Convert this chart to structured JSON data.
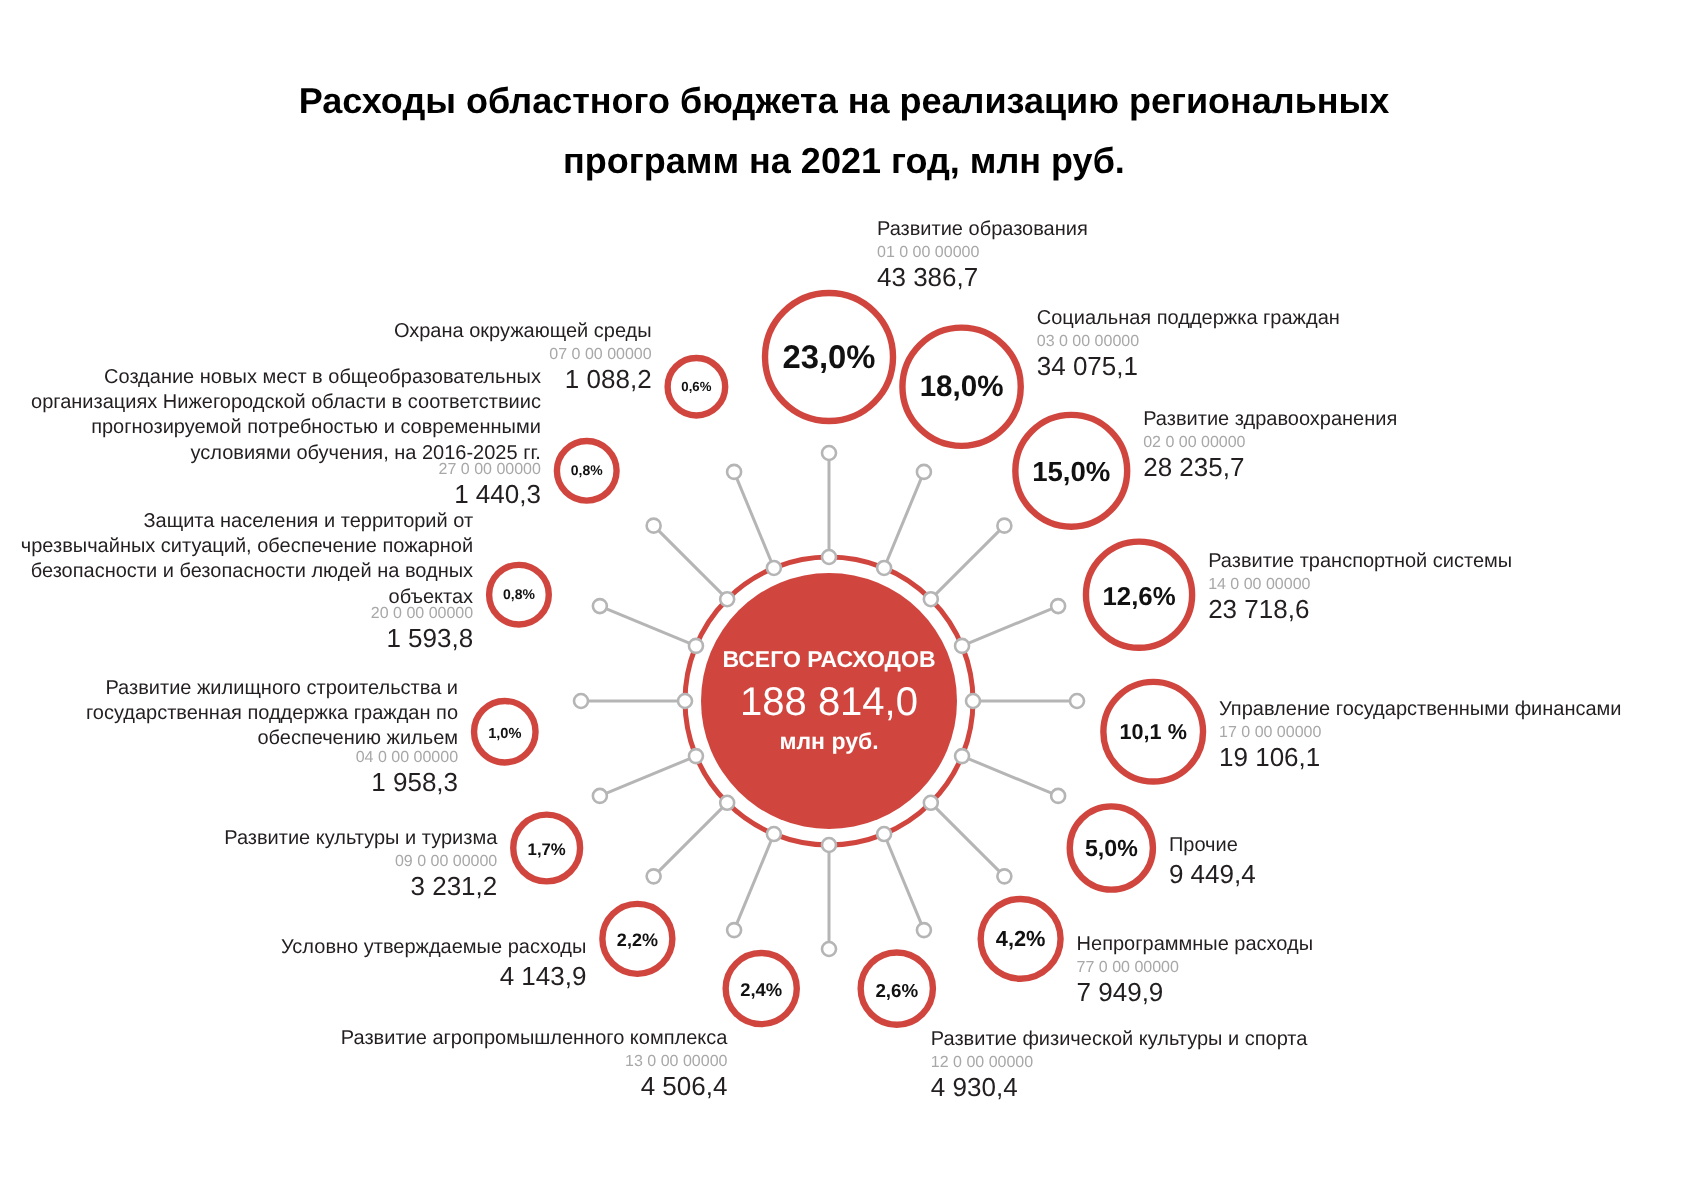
{
  "chart_data": {
    "type": "other",
    "title": "Расходы областного бюджета на реализацию региональных программ на 2021 год, млн руб.",
    "categories": [
      "Развитие образования",
      "Социальная поддержка граждан",
      "Развитие здравоохранения",
      "Развитие транспортной системы",
      "Управление государственными финансами",
      "Прочие",
      "Непрограммные расходы",
      "Развитие физической культуры и спорта",
      "Развитие агропромышленного комплекса",
      "Условно утверждаемые расходы",
      "Развитие культуры и туризма",
      "Развитие жилищного строительства и государственная поддержка граждан по обеспечению жильем",
      "Защита населения и территорий от чрезвычайных ситуаций, обеспечение пожарной безопасности и безопасности людей на водных объектах",
      "Создание новых мест в общеобразовательных организациях Нижегородской области в соответствиис прогнозируемой потребностью и современными условиями обучения, на 2016-2025 гг.",
      "Охрана окружающей среды"
    ],
    "series": [
      {
        "color": "#231f20",
        "values": [
          43386.7,
          34075.1,
          28235.7,
          23718.6,
          19106.1,
          9449.4,
          7949.9,
          4930.4,
          4506.4,
          4143.9,
          3231.2,
          1958.3,
          1593.8,
          1440.3,
          1088.2
        ],
        "value_labels": [
          "43 386,7",
          "34 075,1",
          "28 235,7",
          "23 718,6",
          "19 106,1",
          "9 449,4",
          "7 949,9",
          "4 930,4",
          "4 506,4",
          "4 143,9",
          "3 231,2",
          "1 958,3",
          "1 593,8",
          "1 440,3",
          "1 088,2"
        ]
      },
      {
        "color": "#d0463f",
        "values": [
          23.0,
          18.0,
          15.0,
          12.6,
          10.1,
          5.0,
          4.2,
          2.6,
          2.4,
          2.2,
          1.7,
          1.0,
          0.8,
          0.8,
          0.6
        ],
        "value_labels": [
          "23,0%",
          "18,0%",
          "15,0%",
          "12,6%",
          "10,1 %",
          "5,0%",
          "4,2%",
          "2,6%",
          "2,4%",
          "2,2%",
          "1,7%",
          "1,0%",
          "0,8%",
          "0,8%",
          "0,6%"
        ]
      }
    ],
    "totals": [
      "188 814,0"
    ],
    "annotations": [
      "ВСЕГО РАСХОДОВ",
      "млн руб.",
      {
        "text": "01 0 00 00000",
        "x": "Развитие образования"
      },
      {
        "text": "03 0 00 00000",
        "x": "Социальная поддержка граждан"
      },
      {
        "text": "02 0 00 00000",
        "x": "Развитие здравоохранения"
      },
      {
        "text": "14 0 00 00000",
        "x": "Развитие транспортной системы"
      },
      {
        "text": "17 0 00 00000",
        "x": "Управление государственными финансами"
      },
      {
        "text": "77 0 00 00000",
        "x": "Непрограммные расходы"
      },
      {
        "text": "12 0 00 00000",
        "x": "Развитие физической культуры и спорта"
      },
      {
        "text": "13 0 00 00000",
        "x": "Развитие агропромышленного комплекса"
      },
      {
        "text": "09 0 00 00000",
        "x": "Развитие культуры и туризма"
      },
      {
        "text": "04 0 00 00000",
        "x": "Развитие жилищного строительства и государственная поддержка граждан по обеспечению жильем"
      },
      {
        "text": "20 0 00 00000",
        "x": "Защита населения и территорий от чрезвычайных ситуаций, обеспечение пожарной безопасности и безопасности людей на водных объектах"
      },
      {
        "text": "27 0 00 00000",
        "x": "Создание новых мест в общеобразовательных организациях Нижегородской области в соответствиис прогнозируемой потребностью и современными условиями обучения, на 2016-2025 гг."
      },
      {
        "text": "07 0 00 00000",
        "x": "Охрана окружающей среды"
      }
    ]
  }
}
